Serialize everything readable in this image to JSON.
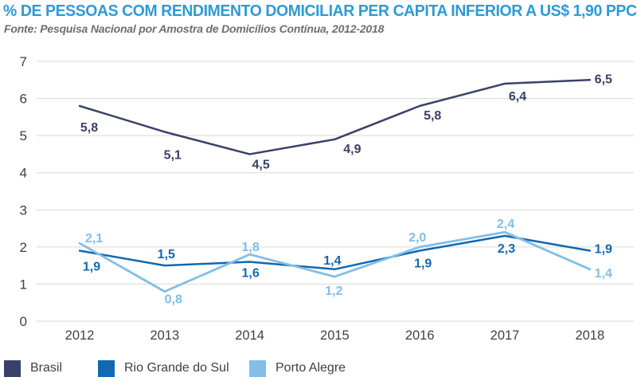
{
  "header": {
    "title": "% DE PESSOAS COM RENDIMENTO DOMICILIAR PER CAPITA INFERIOR A US$ 1,90 PPC",
    "source": "Fonte: Pesquisa Nacional por Amostra de Domicílios Contínua, 2012-2018"
  },
  "chart_data": {
    "type": "line",
    "title": "% DE PESSOAS COM RENDIMENTO DOMICILIAR PER CAPITA INFERIOR A US$ 1,90 PPC",
    "categories": [
      "2012",
      "2013",
      "2014",
      "2015",
      "2016",
      "2017",
      "2018"
    ],
    "series": [
      {
        "name": "Brasil",
        "color": "#3A4168",
        "values": [
          5.8,
          5.1,
          4.5,
          4.9,
          5.8,
          6.4,
          6.5
        ]
      },
      {
        "name": "Rio Grande do Sul",
        "color": "#1268B1",
        "values": [
          1.9,
          1.5,
          1.6,
          1.4,
          1.9,
          2.3,
          1.9
        ]
      },
      {
        "name": "Porto Alegre",
        "color": "#82BEE8",
        "values": [
          2.1,
          0.8,
          1.8,
          1.2,
          2.0,
          2.4,
          1.4
        ]
      }
    ],
    "ylim": [
      0,
      7
    ],
    "yticks": [
      0,
      1,
      2,
      3,
      4,
      5,
      6,
      7
    ],
    "xlabel": "",
    "ylabel": "",
    "grid": true,
    "data_labels": true,
    "decimal_separator": ",",
    "legend_position": "bottom"
  },
  "colors": {
    "title": "#2D9AD7",
    "source_text": "#6D6E71",
    "axis_text": "#414042",
    "gridline": "#D8D8D8",
    "background": "#FFFFFF"
  }
}
